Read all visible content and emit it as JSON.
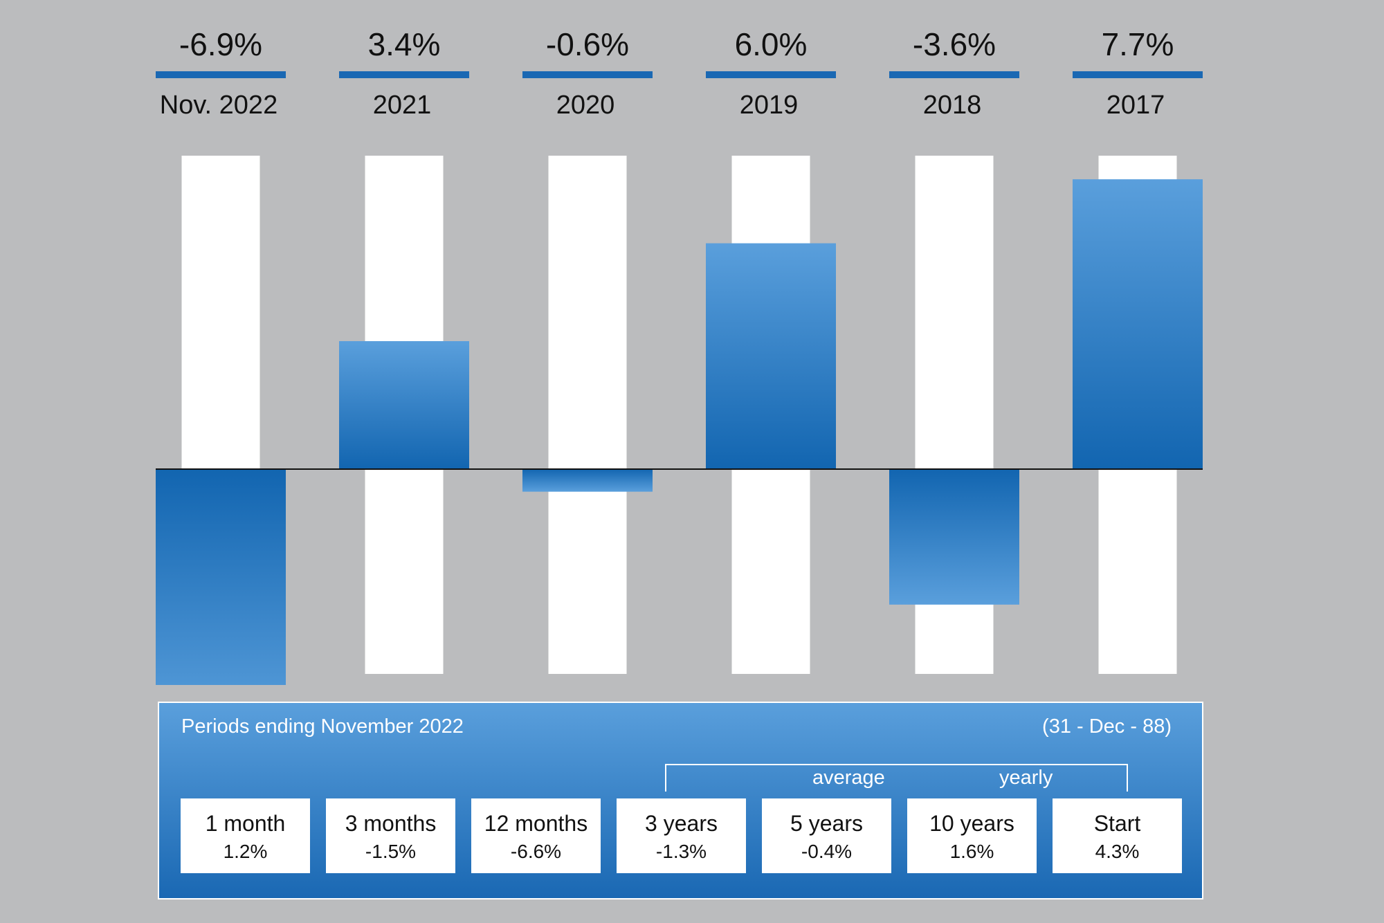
{
  "chart_data": {
    "type": "bar",
    "categories": [
      "Nov. 2022",
      "2021",
      "2020",
      "2019",
      "2018",
      "2017"
    ],
    "values": [
      -6.9,
      3.4,
      -0.6,
      6.0,
      -3.6,
      7.7
    ],
    "value_labels": [
      "-6.9%",
      "3.4%",
      "-0.6%",
      "6.0%",
      "-3.6%",
      "7.7%"
    ],
    "ylim": [
      -5.5,
      8.3
    ],
    "grid": false,
    "legend": "none"
  },
  "colors": {
    "background": "#bbbcbe",
    "bar_top": "#5a9fdc",
    "bar_bottom": "#1265b0",
    "track": "#ffffff",
    "accent_line": "#1a68b3"
  },
  "periods": {
    "title": "Periods ending November 2022",
    "start_date": "(31 - Dec - 88)",
    "average_label": "average",
    "yearly_label": "yearly",
    "items": [
      {
        "label": "1 month",
        "value": "1.2%"
      },
      {
        "label": "3 months",
        "value": "-1.5%"
      },
      {
        "label": "12 months",
        "value": "-6.6%"
      },
      {
        "label": "3 years",
        "value": "-1.3%"
      },
      {
        "label": "5 years",
        "value": "-0.4%"
      },
      {
        "label": "10 years",
        "value": "1.6%"
      },
      {
        "label": "Start",
        "value": "4.3%"
      }
    ]
  }
}
